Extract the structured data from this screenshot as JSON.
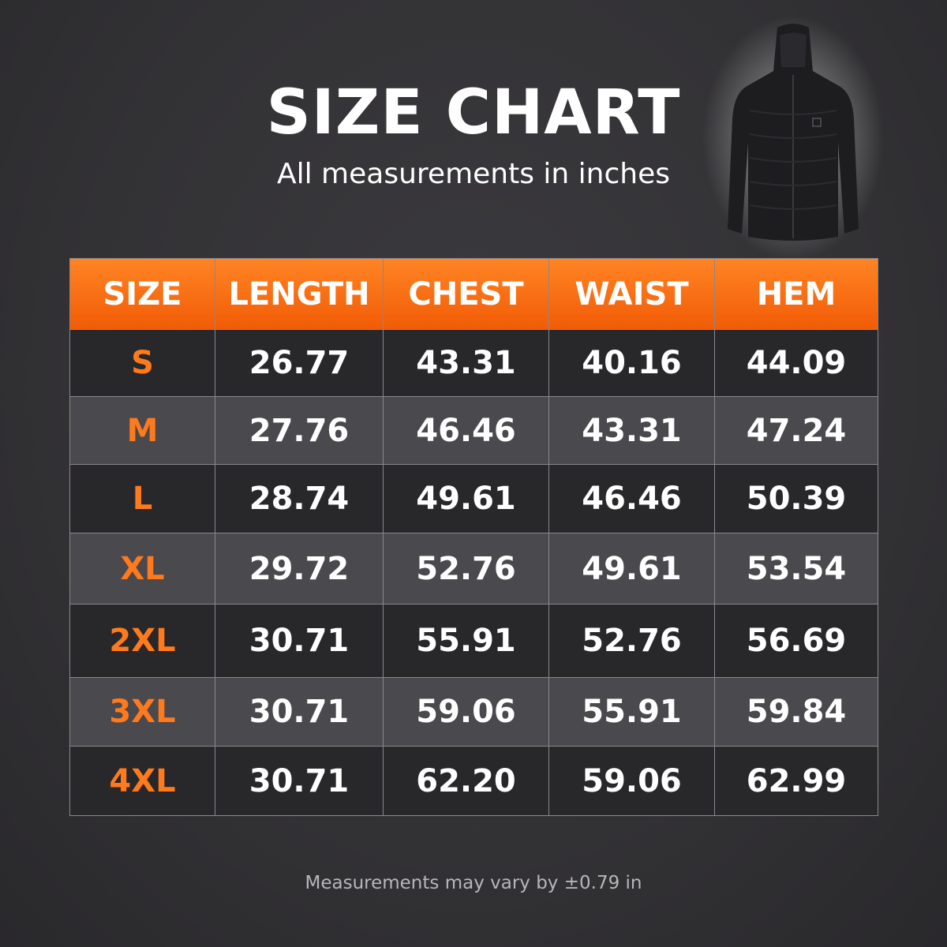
{
  "header": {
    "title": "SIZE CHART",
    "subtitle": "All measurements in inches"
  },
  "table": {
    "columns": [
      "SIZE",
      "LENGTH",
      "CHEST",
      "WAIST",
      "HEM"
    ],
    "rows": [
      [
        "S",
        "26.77",
        "43.31",
        "40.16",
        "44.09"
      ],
      [
        "M",
        "27.76",
        "46.46",
        "43.31",
        "47.24"
      ],
      [
        "L",
        "28.74",
        "49.61",
        "46.46",
        "50.39"
      ],
      [
        "XL",
        "29.72",
        "52.76",
        "49.61",
        "53.54"
      ],
      [
        "2XL",
        "30.71",
        "55.91",
        "52.76",
        "56.69"
      ],
      [
        "3XL",
        "30.71",
        "59.06",
        "55.91",
        "59.84"
      ],
      [
        "4XL",
        "30.71",
        "62.20",
        "59.06",
        "62.99"
      ]
    ]
  },
  "footnote": "Measurements may vary by ±0.79 in"
}
